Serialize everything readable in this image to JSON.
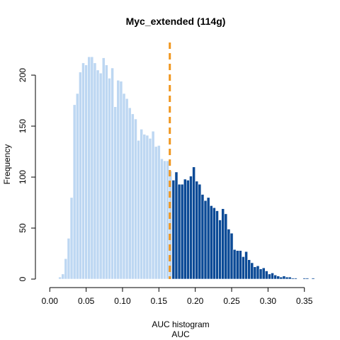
{
  "chart_data": {
    "type": "bar",
    "title": "Myc_extended (114g)",
    "xlabel": "AUC",
    "xsublabel": "AUC histogram",
    "ylabel": "Frequency",
    "xlim": [
      0.0,
      0.36
    ],
    "ylim": [
      0,
      232
    ],
    "x_ticks": [
      0.0,
      0.05,
      0.1,
      0.15,
      0.2,
      0.25,
      0.3,
      0.35
    ],
    "x_tick_labels": [
      "0.00",
      "0.05",
      "0.10",
      "0.15",
      "0.20",
      "0.25",
      "0.30",
      "0.35"
    ],
    "y_ticks": [
      0,
      50,
      100,
      150,
      200
    ],
    "y_tick_labels": [
      "0",
      "50",
      "100",
      "150",
      "200"
    ],
    "bin_width": 0.004,
    "bin_start": 0.004,
    "threshold": 0.165,
    "colors": {
      "below_threshold": "#bdd7f2",
      "above_threshold": "#0b4a96",
      "threshold_line": "#f0961e"
    },
    "values": [
      0,
      0,
      2,
      5,
      20,
      40,
      80,
      171,
      182,
      203,
      212,
      210,
      218,
      218,
      212,
      205,
      202,
      217,
      210,
      197,
      207,
      169,
      195,
      194,
      182,
      177,
      168,
      162,
      157,
      136,
      147,
      142,
      141,
      138,
      145,
      130,
      131,
      118,
      116,
      116,
      106,
      97,
      105,
      93,
      93,
      98,
      97,
      101,
      110,
      96,
      93,
      83,
      77,
      80,
      72,
      70,
      67,
      58,
      69,
      64,
      49,
      45,
      29,
      28,
      28,
      22,
      27,
      19,
      16,
      12,
      13,
      10,
      11,
      8,
      5,
      6,
      4,
      3,
      2,
      3,
      2,
      2,
      1,
      1,
      0,
      0,
      1,
      1,
      0,
      1
    ]
  }
}
